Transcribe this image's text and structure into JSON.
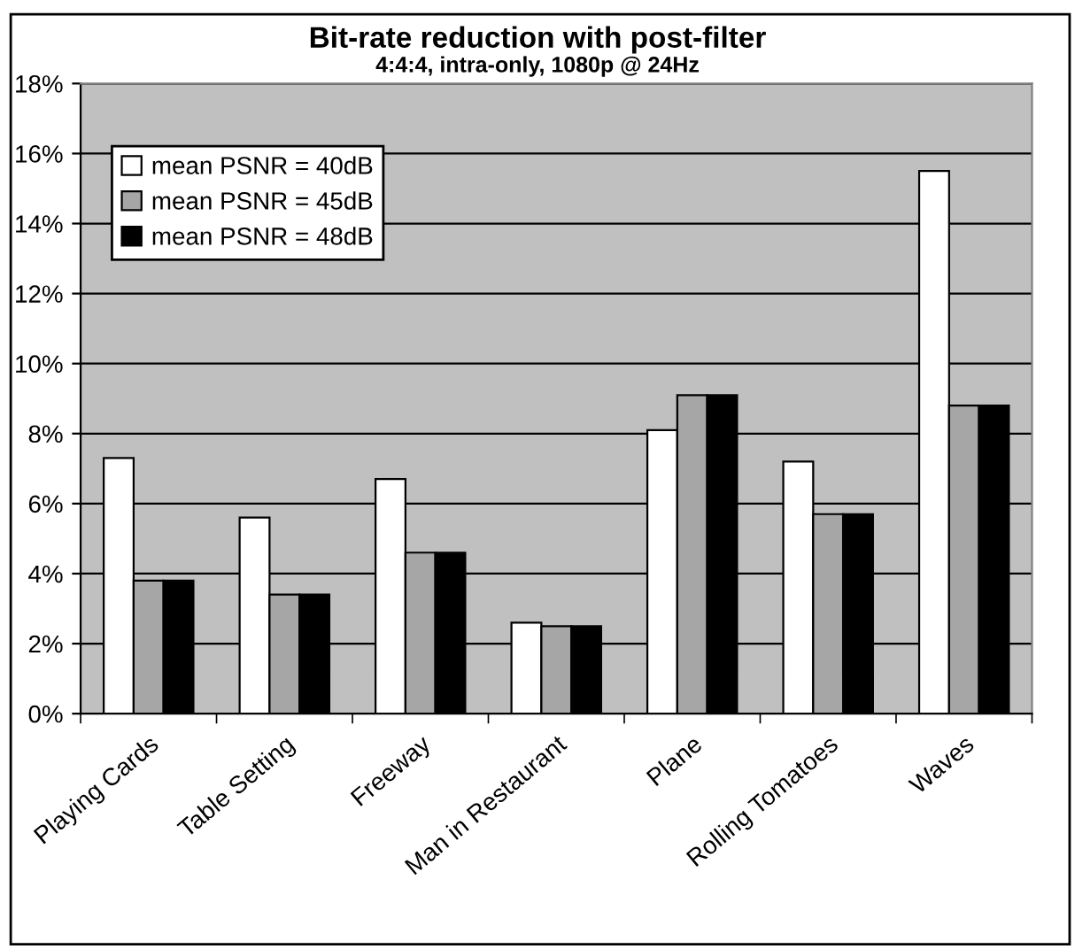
{
  "chart_data": {
    "type": "bar",
    "title": "Bit-rate reduction with post-filter",
    "subtitle": "4:4:4, intra-only, 1080p @ 24Hz",
    "categories": [
      "Playing Cards",
      "Table Setting",
      "Freeway",
      "Man in Restaurant",
      "Plane",
      "Rolling Tomatoes",
      "Waves"
    ],
    "series": [
      {
        "name": "mean PSNR = 40dB",
        "color": "#ffffff",
        "values": [
          7.3,
          5.6,
          6.7,
          2.6,
          8.1,
          7.2,
          15.5
        ]
      },
      {
        "name": "mean PSNR = 45dB",
        "color": "#a6a6a6",
        "values": [
          3.8,
          3.4,
          4.6,
          2.5,
          9.1,
          5.7,
          8.8
        ]
      },
      {
        "name": "mean PSNR = 48dB",
        "color": "#000000",
        "values": [
          3.8,
          3.4,
          4.6,
          2.5,
          9.1,
          5.7,
          8.8
        ]
      }
    ],
    "ylim": [
      0,
      18
    ],
    "yticks": [
      {
        "value": 0,
        "label": "0%"
      },
      {
        "value": 2,
        "label": "2%"
      },
      {
        "value": 4,
        "label": "4%"
      },
      {
        "value": 6,
        "label": "6%"
      },
      {
        "value": 8,
        "label": "8%"
      },
      {
        "value": 10,
        "label": "10%"
      },
      {
        "value": 12,
        "label": "12%"
      },
      {
        "value": 14,
        "label": "14%"
      },
      {
        "value": 16,
        "label": "16%"
      },
      {
        "value": 18,
        "label": "18%"
      }
    ],
    "grid": "y",
    "legend": "top left"
  }
}
